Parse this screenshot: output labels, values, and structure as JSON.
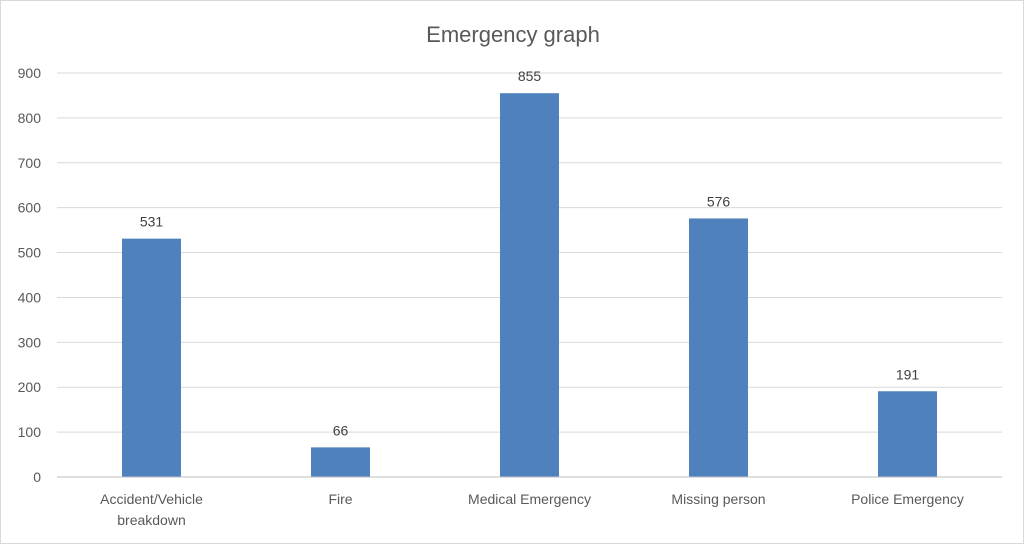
{
  "chart_data": {
    "type": "bar",
    "title": "Emergency graph",
    "categories": [
      [
        "Accident/Vehicle",
        "breakdown"
      ],
      [
        "Fire"
      ],
      [
        "Medical Emergency"
      ],
      [
        "Missing person"
      ],
      [
        "Police Emergency"
      ]
    ],
    "values": [
      531,
      66,
      855,
      576,
      191
    ],
    "ylim": [
      0,
      900
    ],
    "yticks": [
      0,
      100,
      200,
      300,
      400,
      500,
      600,
      700,
      800,
      900
    ],
    "grid": true,
    "legend": "none",
    "data_labels": true,
    "colors": {
      "bar": "#4f81bd",
      "text": "#595959",
      "grid": "#d9d9d9"
    }
  }
}
